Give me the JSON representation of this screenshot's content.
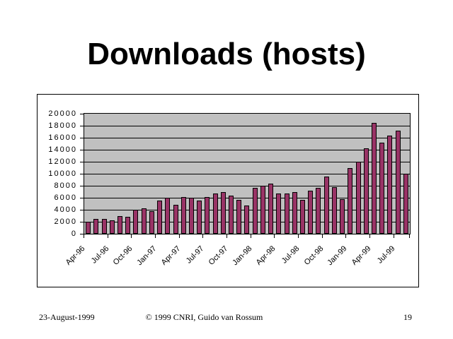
{
  "slide": {
    "title": "Downloads (hosts)",
    "footer": {
      "date": "23-August-1999",
      "copyright": "© 1999 CNRI, Guido van Rossum",
      "page_number": "19"
    }
  },
  "chart_data": {
    "type": "bar",
    "title": "Downloads (hosts)",
    "xlabel": "",
    "ylabel": "",
    "ylim": [
      0,
      20000
    ],
    "y_ticks": [
      0,
      2000,
      4000,
      6000,
      8000,
      10000,
      12000,
      14000,
      16000,
      18000,
      20000
    ],
    "grid": true,
    "legend": false,
    "plot_bg_color": "#C0C0C0",
    "bar_color": "#993366",
    "bar_border_color": "#000000",
    "categories": [
      "Apr-96",
      "May-96",
      "Jun-96",
      "Jul-96",
      "Aug-96",
      "Sep-96",
      "Oct-96",
      "Nov-96",
      "Dec-96",
      "Jan-97",
      "Feb-97",
      "Mar-97",
      "Apr-97",
      "May-97",
      "Jun-97",
      "Jul-97",
      "Aug-97",
      "Sep-97",
      "Oct-97",
      "Nov-97",
      "Dec-97",
      "Jan-98",
      "Feb-98",
      "Mar-98",
      "Apr-98",
      "May-98",
      "Jun-98",
      "Jul-98",
      "Aug-98",
      "Sep-98",
      "Oct-98",
      "Nov-98",
      "Dec-98",
      "Jan-99",
      "Feb-99",
      "Mar-99",
      "Apr-99",
      "May-99",
      "Jun-99",
      "Jul-99",
      "Aug-99"
    ],
    "values": [
      2000,
      2500,
      2500,
      2250,
      3000,
      2850,
      4000,
      4250,
      3800,
      5500,
      6000,
      4800,
      6100,
      6000,
      5500,
      6100,
      6700,
      7000,
      6300,
      5600,
      4700,
      7700,
      8000,
      8400,
      6700,
      6700,
      7000,
      5600,
      7200,
      7600,
      9500,
      7800,
      5800,
      10900,
      12000,
      14200,
      18500,
      15200,
      16400,
      17200,
      10000
    ],
    "x_tick_labels": [
      "Apr-96",
      "Jul-96",
      "Oct-96",
      "Jan-97",
      "Apr-97",
      "Jul-97",
      "Oct-97",
      "Jan-98",
      "Apr-98",
      "Jul-98",
      "Oct-98",
      "Jan-99",
      "Apr-99",
      "Jul-99"
    ],
    "x_tick_label_step": 3
  }
}
